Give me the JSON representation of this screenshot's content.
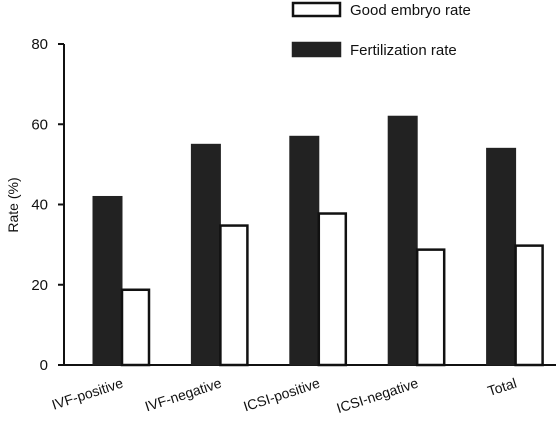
{
  "chart_data": {
    "type": "bar",
    "title": "",
    "xlabel": "",
    "ylabel": "Rate (%)",
    "ylim": [
      0,
      80
    ],
    "yticks": [
      0,
      20,
      40,
      60,
      80
    ],
    "categories": [
      "IVF-positive",
      "IVF-negative",
      "ICSI-positive",
      "ICSI-negative",
      "Total"
    ],
    "series": [
      {
        "name": "Fertilization rate",
        "values": [
          42,
          55,
          57,
          62,
          54
        ],
        "fill": "#222222",
        "stroke": "#222222"
      },
      {
        "name": "Good embryo rate",
        "values": [
          19,
          35,
          38,
          29,
          30
        ],
        "fill": "#ffffff",
        "stroke": "#111111"
      }
    ],
    "legend": {
      "position": "top-right",
      "order": [
        "Good embryo rate",
        "Fertilization rate"
      ]
    },
    "grid": false
  }
}
